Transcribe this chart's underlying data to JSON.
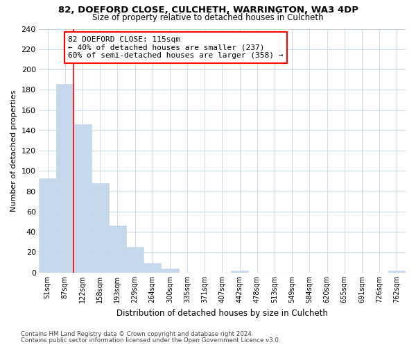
{
  "title1": "82, DOEFORD CLOSE, CULCHETH, WARRINGTON, WA3 4DP",
  "title2": "Size of property relative to detached houses in Culcheth",
  "xlabel": "Distribution of detached houses by size in Culcheth",
  "ylabel": "Number of detached properties",
  "categories": [
    "51sqm",
    "87sqm",
    "122sqm",
    "158sqm",
    "193sqm",
    "229sqm",
    "264sqm",
    "300sqm",
    "335sqm",
    "371sqm",
    "407sqm",
    "442sqm",
    "478sqm",
    "513sqm",
    "549sqm",
    "584sqm",
    "620sqm",
    "655sqm",
    "691sqm",
    "726sqm",
    "762sqm"
  ],
  "values": [
    93,
    186,
    146,
    88,
    46,
    25,
    9,
    4,
    0,
    0,
    0,
    2,
    0,
    0,
    0,
    0,
    0,
    0,
    0,
    0,
    2
  ],
  "bar_color": "#c5d8ec",
  "bar_edge_color": "#c5d8ec",
  "annotation_line1": "82 DOEFORD CLOSE: 115sqm",
  "annotation_line2": "← 40% of detached houses are smaller (237)",
  "annotation_line3": "60% of semi-detached houses are larger (358) →",
  "red_line_x": 1.5,
  "ylim": [
    0,
    240
  ],
  "yticks": [
    0,
    20,
    40,
    60,
    80,
    100,
    120,
    140,
    160,
    180,
    200,
    220,
    240
  ],
  "footnote1": "Contains HM Land Registry data © Crown copyright and database right 2024.",
  "footnote2": "Contains public sector information licensed under the Open Government Licence v3.0.",
  "bg_color": "#ffffff",
  "plot_bg_color": "#ffffff",
  "grid_color": "#d0dcea",
  "bar_width": 1.0
}
